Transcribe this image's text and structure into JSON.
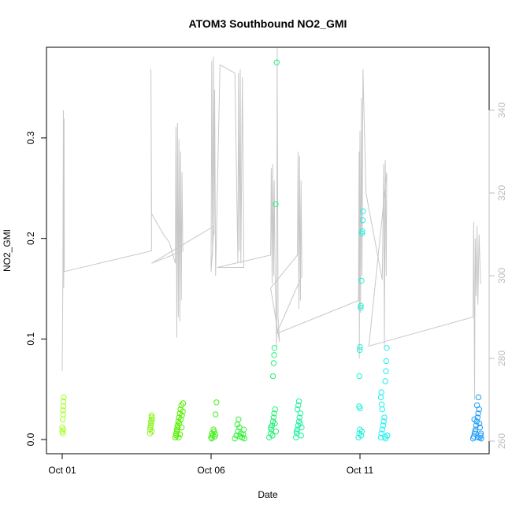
{
  "chart_data": {
    "type": "scatter",
    "title": "ATOM3 Southbound NO2_GMI",
    "xlabel": "Date",
    "ylabel": "NO2_GMI",
    "x_ticks": [
      {
        "day": 1,
        "label": "Oct 01"
      },
      {
        "day": 6,
        "label": "Oct 06"
      },
      {
        "day": 11,
        "label": "Oct 11"
      }
    ],
    "xlim_days": [
      1,
      15.2
    ],
    "ylim": [
      0,
      0.375
    ],
    "y_ticks": [
      0.0,
      0.1,
      0.2,
      0.3
    ],
    "y_tick_labels": [
      "0.0",
      "0.1",
      "0.2",
      "0.3"
    ],
    "right_axis": {
      "ticks": [
        260,
        280,
        300,
        320,
        340
      ],
      "tick_labels": [
        "260",
        "280",
        "300",
        "320",
        "340"
      ],
      "lim": [
        259.5,
        356
      ],
      "color": "#bdbdbd"
    },
    "line_color": "#c8c8c8",
    "series": [
      {
        "values": [
          [
            1.0,
            0.008
          ],
          [
            1.0,
            0.012
          ],
          [
            1.02,
            0.02
          ],
          [
            1.03,
            0.025
          ],
          [
            1.03,
            0.029
          ],
          [
            1.04,
            0.033
          ],
          [
            1.04,
            0.038
          ],
          [
            1.05,
            0.042
          ],
          [
            1.02,
            0.006
          ],
          [
            1.04,
            0.01
          ]
        ],
        "color": "#a8ff2a"
      },
      {
        "values": [
          [
            3.95,
            0.006
          ],
          [
            3.95,
            0.01
          ],
          [
            3.97,
            0.014
          ],
          [
            3.98,
            0.018
          ],
          [
            4.0,
            0.022
          ],
          [
            4.0,
            0.024
          ],
          [
            3.96,
            0.012
          ],
          [
            3.99,
            0.016
          ],
          [
            4.01,
            0.008
          ],
          [
            4.02,
            0.02
          ]
        ],
        "color": "#8cf320"
      },
      {
        "values": [
          [
            4.8,
            0.002
          ],
          [
            4.82,
            0.006
          ],
          [
            4.85,
            0.01
          ],
          [
            4.87,
            0.014
          ],
          [
            4.9,
            0.018
          ],
          [
            4.92,
            0.022
          ],
          [
            4.95,
            0.026
          ],
          [
            4.97,
            0.03
          ],
          [
            5.0,
            0.034
          ],
          [
            4.83,
            0.004
          ],
          [
            4.88,
            0.012
          ],
          [
            4.93,
            0.016
          ],
          [
            4.98,
            0.02
          ],
          [
            5.02,
            0.024
          ],
          [
            5.05,
            0.028
          ],
          [
            5.06,
            0.036
          ],
          [
            4.86,
            0.008
          ],
          [
            4.91,
            0.002
          ],
          [
            4.96,
            0.005
          ],
          [
            5.01,
            0.012
          ]
        ],
        "color": "#55f000"
      },
      {
        "values": [
          [
            6.0,
            0.002
          ],
          [
            6.03,
            0.006
          ],
          [
            6.05,
            0.004
          ],
          [
            6.1,
            0.008
          ],
          [
            6.12,
            0.003
          ],
          [
            6.15,
            0.025
          ],
          [
            6.18,
            0.037
          ],
          [
            6.08,
            0.01
          ],
          [
            6.14,
            0.005
          ],
          [
            6.02,
            0.001
          ]
        ],
        "color": "#42f01c"
      },
      {
        "values": [
          [
            6.8,
            0.001
          ],
          [
            6.85,
            0.004
          ],
          [
            6.9,
            0.008
          ],
          [
            6.95,
            0.012
          ],
          [
            7.0,
            0.006
          ],
          [
            7.05,
            0.002
          ],
          [
            7.1,
            0.01
          ],
          [
            6.92,
            0.02
          ],
          [
            6.98,
            0.003
          ],
          [
            7.08,
            0.005
          ],
          [
            7.12,
            0.001
          ],
          [
            6.88,
            0.015
          ]
        ],
        "color": "#30f035"
      },
      {
        "values": [
          [
            7.95,
            0.002
          ],
          [
            8.0,
            0.006
          ],
          [
            8.02,
            0.01
          ],
          [
            8.05,
            0.014
          ],
          [
            8.08,
            0.018
          ],
          [
            8.1,
            0.022
          ],
          [
            8.12,
            0.026
          ],
          [
            8.15,
            0.03
          ],
          [
            8.08,
            0.063
          ],
          [
            8.1,
            0.076
          ],
          [
            8.12,
            0.084
          ],
          [
            8.13,
            0.091
          ],
          [
            8.17,
            0.234
          ],
          [
            8.2,
            0.375
          ],
          [
            8.0,
            0.012
          ],
          [
            8.06,
            0.004
          ],
          [
            8.14,
            0.016
          ],
          [
            8.18,
            0.008
          ]
        ],
        "color": "#25f07a"
      },
      {
        "values": [
          [
            8.85,
            0.002
          ],
          [
            8.88,
            0.006
          ],
          [
            8.9,
            0.01
          ],
          [
            8.92,
            0.014
          ],
          [
            8.95,
            0.018
          ],
          [
            8.97,
            0.022
          ],
          [
            9.0,
            0.026
          ],
          [
            8.9,
            0.03
          ],
          [
            8.93,
            0.034
          ],
          [
            8.95,
            0.038
          ],
          [
            9.02,
            0.004
          ],
          [
            9.04,
            0.012
          ],
          [
            8.87,
            0.008
          ],
          [
            8.99,
            0.016
          ]
        ],
        "color": "#20f0a0"
      },
      {
        "values": [
          [
            10.95,
            0.002
          ],
          [
            10.98,
            0.006
          ],
          [
            11.0,
            0.01
          ],
          [
            10.97,
            0.033
          ],
          [
            11.0,
            0.031
          ],
          [
            10.98,
            0.063
          ],
          [
            10.99,
            0.089
          ],
          [
            11.0,
            0.092
          ],
          [
            11.02,
            0.131
          ],
          [
            11.03,
            0.133
          ],
          [
            11.05,
            0.158
          ],
          [
            11.07,
            0.205
          ],
          [
            11.08,
            0.207
          ],
          [
            11.09,
            0.218
          ],
          [
            11.1,
            0.227
          ],
          [
            11.04,
            0.004
          ],
          [
            11.06,
            0.008
          ]
        ],
        "color": "#1fefd8"
      },
      {
        "values": [
          [
            11.7,
            0.002
          ],
          [
            11.72,
            0.006
          ],
          [
            11.75,
            0.01
          ],
          [
            11.78,
            0.014
          ],
          [
            11.8,
            0.018
          ],
          [
            11.82,
            0.022
          ],
          [
            11.75,
            0.03
          ],
          [
            11.73,
            0.035
          ],
          [
            11.7,
            0.042
          ],
          [
            11.72,
            0.047
          ],
          [
            11.85,
            0.058
          ],
          [
            11.87,
            0.068
          ],
          [
            11.88,
            0.078
          ],
          [
            11.9,
            0.091
          ],
          [
            11.84,
            0.003
          ],
          [
            11.86,
            0.001
          ],
          [
            11.92,
            0.004
          ]
        ],
        "color": "#1ff0f0"
      },
      {
        "values": [
          [
            14.8,
            0.001
          ],
          [
            14.82,
            0.003
          ],
          [
            14.85,
            0.006
          ],
          [
            14.88,
            0.01
          ],
          [
            14.9,
            0.014
          ],
          [
            14.92,
            0.018
          ],
          [
            14.95,
            0.022
          ],
          [
            14.97,
            0.026
          ],
          [
            15.0,
            0.03
          ],
          [
            15.02,
            0.002
          ],
          [
            15.05,
            0.004
          ],
          [
            15.07,
            0.001
          ],
          [
            14.93,
            0.034
          ],
          [
            14.98,
            0.042
          ],
          [
            14.87,
            0.008
          ],
          [
            15.03,
            0.012
          ],
          [
            14.84,
            0.02
          ],
          [
            15.01,
            0.016
          ],
          [
            14.96,
            0.002
          ],
          [
            15.06,
            0.006
          ]
        ],
        "color": "#1f9df5"
      }
    ],
    "line_series": {
      "values": [
        [
          1.0,
          277
        ],
        [
          1.02,
          300
        ],
        [
          1.04,
          340
        ],
        [
          1.05,
          297
        ],
        [
          1.06,
          338
        ],
        [
          1.07,
          301
        ],
        [
          4.0,
          306
        ],
        [
          3.98,
          350
        ],
        [
          4.0,
          315
        ],
        [
          4.4,
          310
        ],
        [
          4.6,
          308
        ],
        [
          4.8,
          303
        ],
        [
          4.82,
          336
        ],
        [
          4.85,
          285
        ],
        [
          4.87,
          337
        ],
        [
          4.9,
          290
        ],
        [
          4.92,
          333
        ],
        [
          4.95,
          289
        ],
        [
          4.97,
          330
        ],
        [
          5.0,
          294
        ],
        [
          5.02,
          325
        ],
        [
          5.05,
          306
        ],
        [
          4.0,
          303
        ],
        [
          6.1,
          312
        ],
        [
          6.0,
          301
        ],
        [
          6.02,
          352
        ],
        [
          6.05,
          305
        ],
        [
          6.08,
          353
        ],
        [
          6.1,
          310
        ],
        [
          6.12,
          345
        ],
        [
          6.15,
          300
        ],
        [
          6.3,
          351
        ],
        [
          6.8,
          349
        ],
        [
          6.9,
          303
        ],
        [
          6.92,
          349
        ],
        [
          6.95,
          306
        ],
        [
          6.98,
          350
        ],
        [
          7.0,
          303
        ],
        [
          7.05,
          348
        ],
        [
          7.1,
          302
        ],
        [
          6.2,
          302
        ],
        [
          8.0,
          305
        ],
        [
          8.02,
          326
        ],
        [
          8.05,
          298
        ],
        [
          8.07,
          327
        ],
        [
          8.1,
          300
        ],
        [
          8.12,
          323
        ],
        [
          8.15,
          300
        ],
        [
          8.2,
          283
        ],
        [
          8.22,
          355
        ],
        [
          8.25,
          290
        ],
        [
          8.3,
          284
        ],
        [
          8.0,
          297
        ],
        [
          8.9,
          305
        ],
        [
          8.92,
          330
        ],
        [
          8.95,
          292
        ],
        [
          8.97,
          329
        ],
        [
          9.0,
          294
        ],
        [
          9.02,
          323
        ],
        [
          9.05,
          300
        ],
        [
          8.2,
          286
        ],
        [
          10.95,
          294
        ],
        [
          10.97,
          330
        ],
        [
          10.98,
          280
        ],
        [
          11.0,
          335
        ],
        [
          11.02,
          291
        ],
        [
          11.05,
          343
        ],
        [
          11.07,
          300
        ],
        [
          11.1,
          350
        ],
        [
          11.2,
          320
        ],
        [
          11.75,
          299
        ],
        [
          11.8,
          327
        ],
        [
          11.82,
          283
        ],
        [
          11.85,
          328
        ],
        [
          11.88,
          300
        ],
        [
          11.9,
          325
        ],
        [
          11.3,
          283
        ],
        [
          14.8,
          290
        ],
        [
          14.82,
          313
        ],
        [
          14.85,
          270
        ],
        [
          14.87,
          309
        ],
        [
          14.9,
          295
        ],
        [
          14.93,
          312
        ],
        [
          14.96,
          293
        ],
        [
          15.0,
          310
        ],
        [
          15.05,
          298
        ]
      ]
    }
  }
}
